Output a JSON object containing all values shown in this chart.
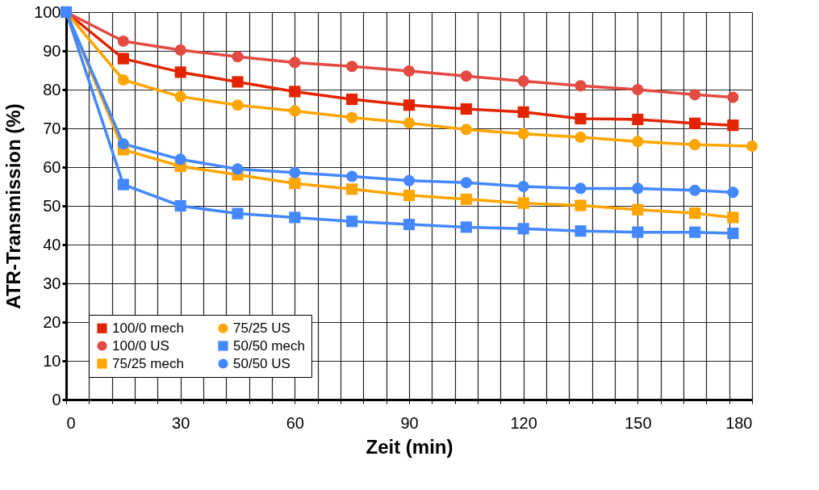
{
  "chart_data": {
    "type": "line",
    "xlabel": "Zeit (min)",
    "ylabel": "ATR-Transmission (%)",
    "x": [
      0,
      15,
      30,
      45,
      60,
      75,
      90,
      105,
      120,
      135,
      150,
      165,
      175
    ],
    "xlim": [
      0,
      180
    ],
    "ylim": [
      0,
      100
    ],
    "xticks": [
      0,
      {
        "value": 6,
        "label": null
      },
      {
        "value": 12,
        "label": null
      },
      {
        "value": 18,
        "label": null
      },
      {
        "value": 24,
        "label": null
      },
      30,
      {
        "value": 36,
        "label": null
      },
      {
        "value": 42,
        "label": null
      },
      {
        "value": 48,
        "label": null
      },
      {
        "value": 54,
        "label": null
      },
      60,
      {
        "value": 66,
        "label": null
      },
      {
        "value": 72,
        "label": null
      },
      {
        "value": 78,
        "label": null
      },
      {
        "value": 84,
        "label": null
      },
      90,
      {
        "value": 96,
        "label": null
      },
      {
        "value": 102,
        "label": null
      },
      {
        "value": 108,
        "label": null
      },
      {
        "value": 114,
        "label": null
      },
      120,
      {
        "value": 126,
        "label": null
      },
      {
        "value": 132,
        "label": null
      },
      {
        "value": 138,
        "label": null
      },
      {
        "value": 144,
        "label": null
      },
      150,
      {
        "value": 156,
        "label": null
      },
      {
        "value": 162,
        "label": null
      },
      {
        "value": 168,
        "label": null
      },
      {
        "value": 174,
        "label": null
      },
      180
    ],
    "yticks": [
      0,
      10,
      20,
      30,
      40,
      50,
      60,
      70,
      80,
      90,
      100
    ],
    "grid": true,
    "legend": "bottom left",
    "series": [
      {
        "name": "100/0 mech",
        "color": "#e32400",
        "marker": "square",
        "values": [
          100,
          88,
          84.5,
          82,
          79.5,
          77.5,
          76,
          75,
          74.2,
          72.5,
          72.3,
          71.3,
          70.8
        ]
      },
      {
        "name": "100/0 US",
        "color": "#e34a41",
        "marker": "circle",
        "values": [
          100,
          92.5,
          90.2,
          88.5,
          87,
          86,
          84.8,
          83.5,
          82.2,
          81,
          80,
          78.7,
          78
        ]
      },
      {
        "name": "75/25 mech",
        "color": "#ffa500",
        "marker": "square",
        "values": [
          100,
          64.5,
          60.2,
          58,
          55.8,
          54.3,
          52.7,
          51.7,
          50.7,
          50.1,
          49,
          48.1,
          47
        ]
      },
      {
        "name": "75/25 US",
        "color": "#ffa500",
        "marker": "circle",
        "x": [
          0,
          15,
          30,
          45,
          60,
          75,
          90,
          105,
          120,
          135,
          150,
          165,
          180
        ],
        "values": [
          100,
          82.5,
          78.2,
          76,
          74.5,
          72.8,
          71.4,
          69.7,
          68.6,
          67.7,
          66.6,
          65.8,
          65.4
        ]
      },
      {
        "name": "50/50 mech",
        "color": "#4488ff",
        "marker": "square",
        "values": [
          100,
          55.5,
          50,
          48,
          47,
          46,
          45.2,
          44.5,
          44.1,
          43.5,
          43.2,
          43.2,
          42.9
        ]
      },
      {
        "name": "50/50 US",
        "color": "#4488ff",
        "marker": "circle",
        "values": [
          100,
          66,
          62,
          59.5,
          58.6,
          57.6,
          56.5,
          56,
          55,
          54.5,
          54.5,
          54,
          53.5
        ]
      }
    ]
  }
}
